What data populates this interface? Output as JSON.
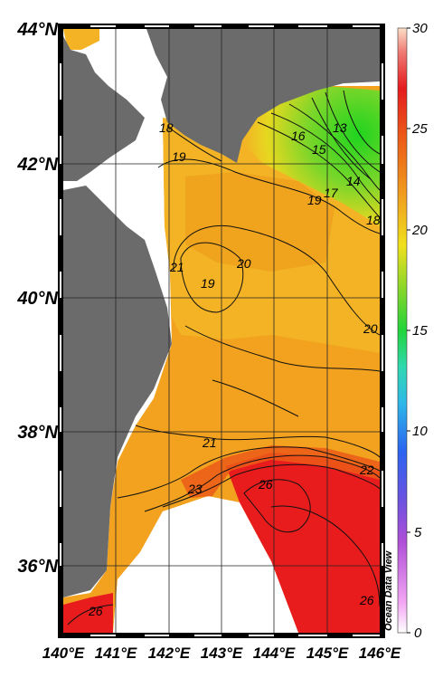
{
  "map": {
    "lat_labels": [
      "44°N",
      "42°N",
      "40°N",
      "38°N",
      "36°N"
    ],
    "lon_labels": [
      "140°E",
      "141°E",
      "142°E",
      "143°E",
      "144°E",
      "145°E",
      "146°E"
    ],
    "colorbar": {
      "ticks": [
        "30",
        "25",
        "20",
        "15",
        "10",
        "5",
        "0"
      ],
      "min": 0,
      "max": 30
    },
    "contour_labels": [
      "13",
      "14",
      "15",
      "16",
      "17",
      "18",
      "19",
      "19",
      "20",
      "20",
      "19",
      "21",
      "21",
      "22",
      "23",
      "26",
      "26",
      "26",
      "18"
    ],
    "watermark": "Ocean Data View",
    "colors": {
      "land": "#6b6b6b",
      "warm_red": "#e81c1c",
      "orange": "#f2a21e",
      "yellow_orange": "#f3b325",
      "green": "#1fd41f"
    }
  }
}
